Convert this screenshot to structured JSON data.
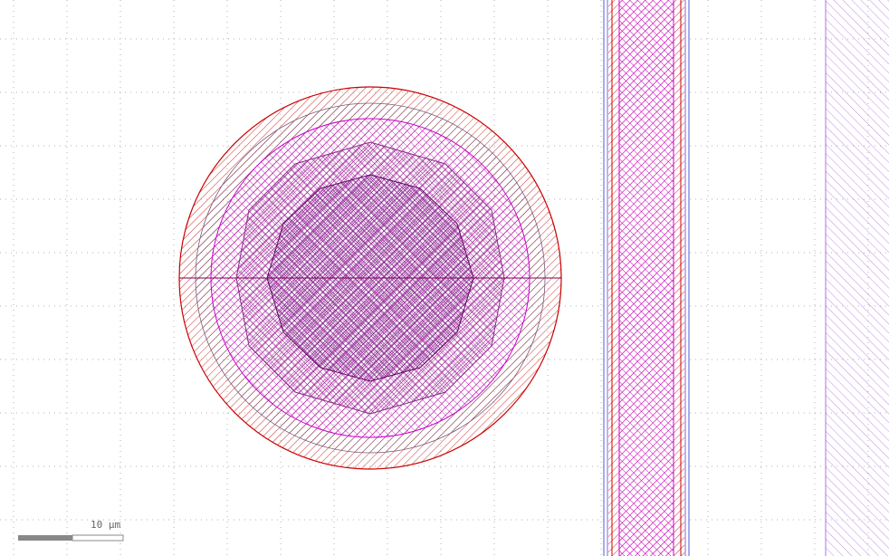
{
  "view": {
    "background": "#ffffff",
    "grid_color": "#b0b0b0"
  },
  "scale_bar": {
    "label": "10 µm"
  },
  "layers": {
    "outline_color": "#cc0000",
    "magenta": "#cc00cc",
    "violet": "#993399",
    "dark_purple": "#660066",
    "blue": "#4a5cd6",
    "lavender": "#b070e0"
  },
  "shapes": [
    {
      "name": "via-pad",
      "kind": "circular-pad-stack"
    },
    {
      "name": "trace-vertical",
      "kind": "layered-trace"
    },
    {
      "name": "plane-right",
      "kind": "hatched-region"
    }
  ]
}
